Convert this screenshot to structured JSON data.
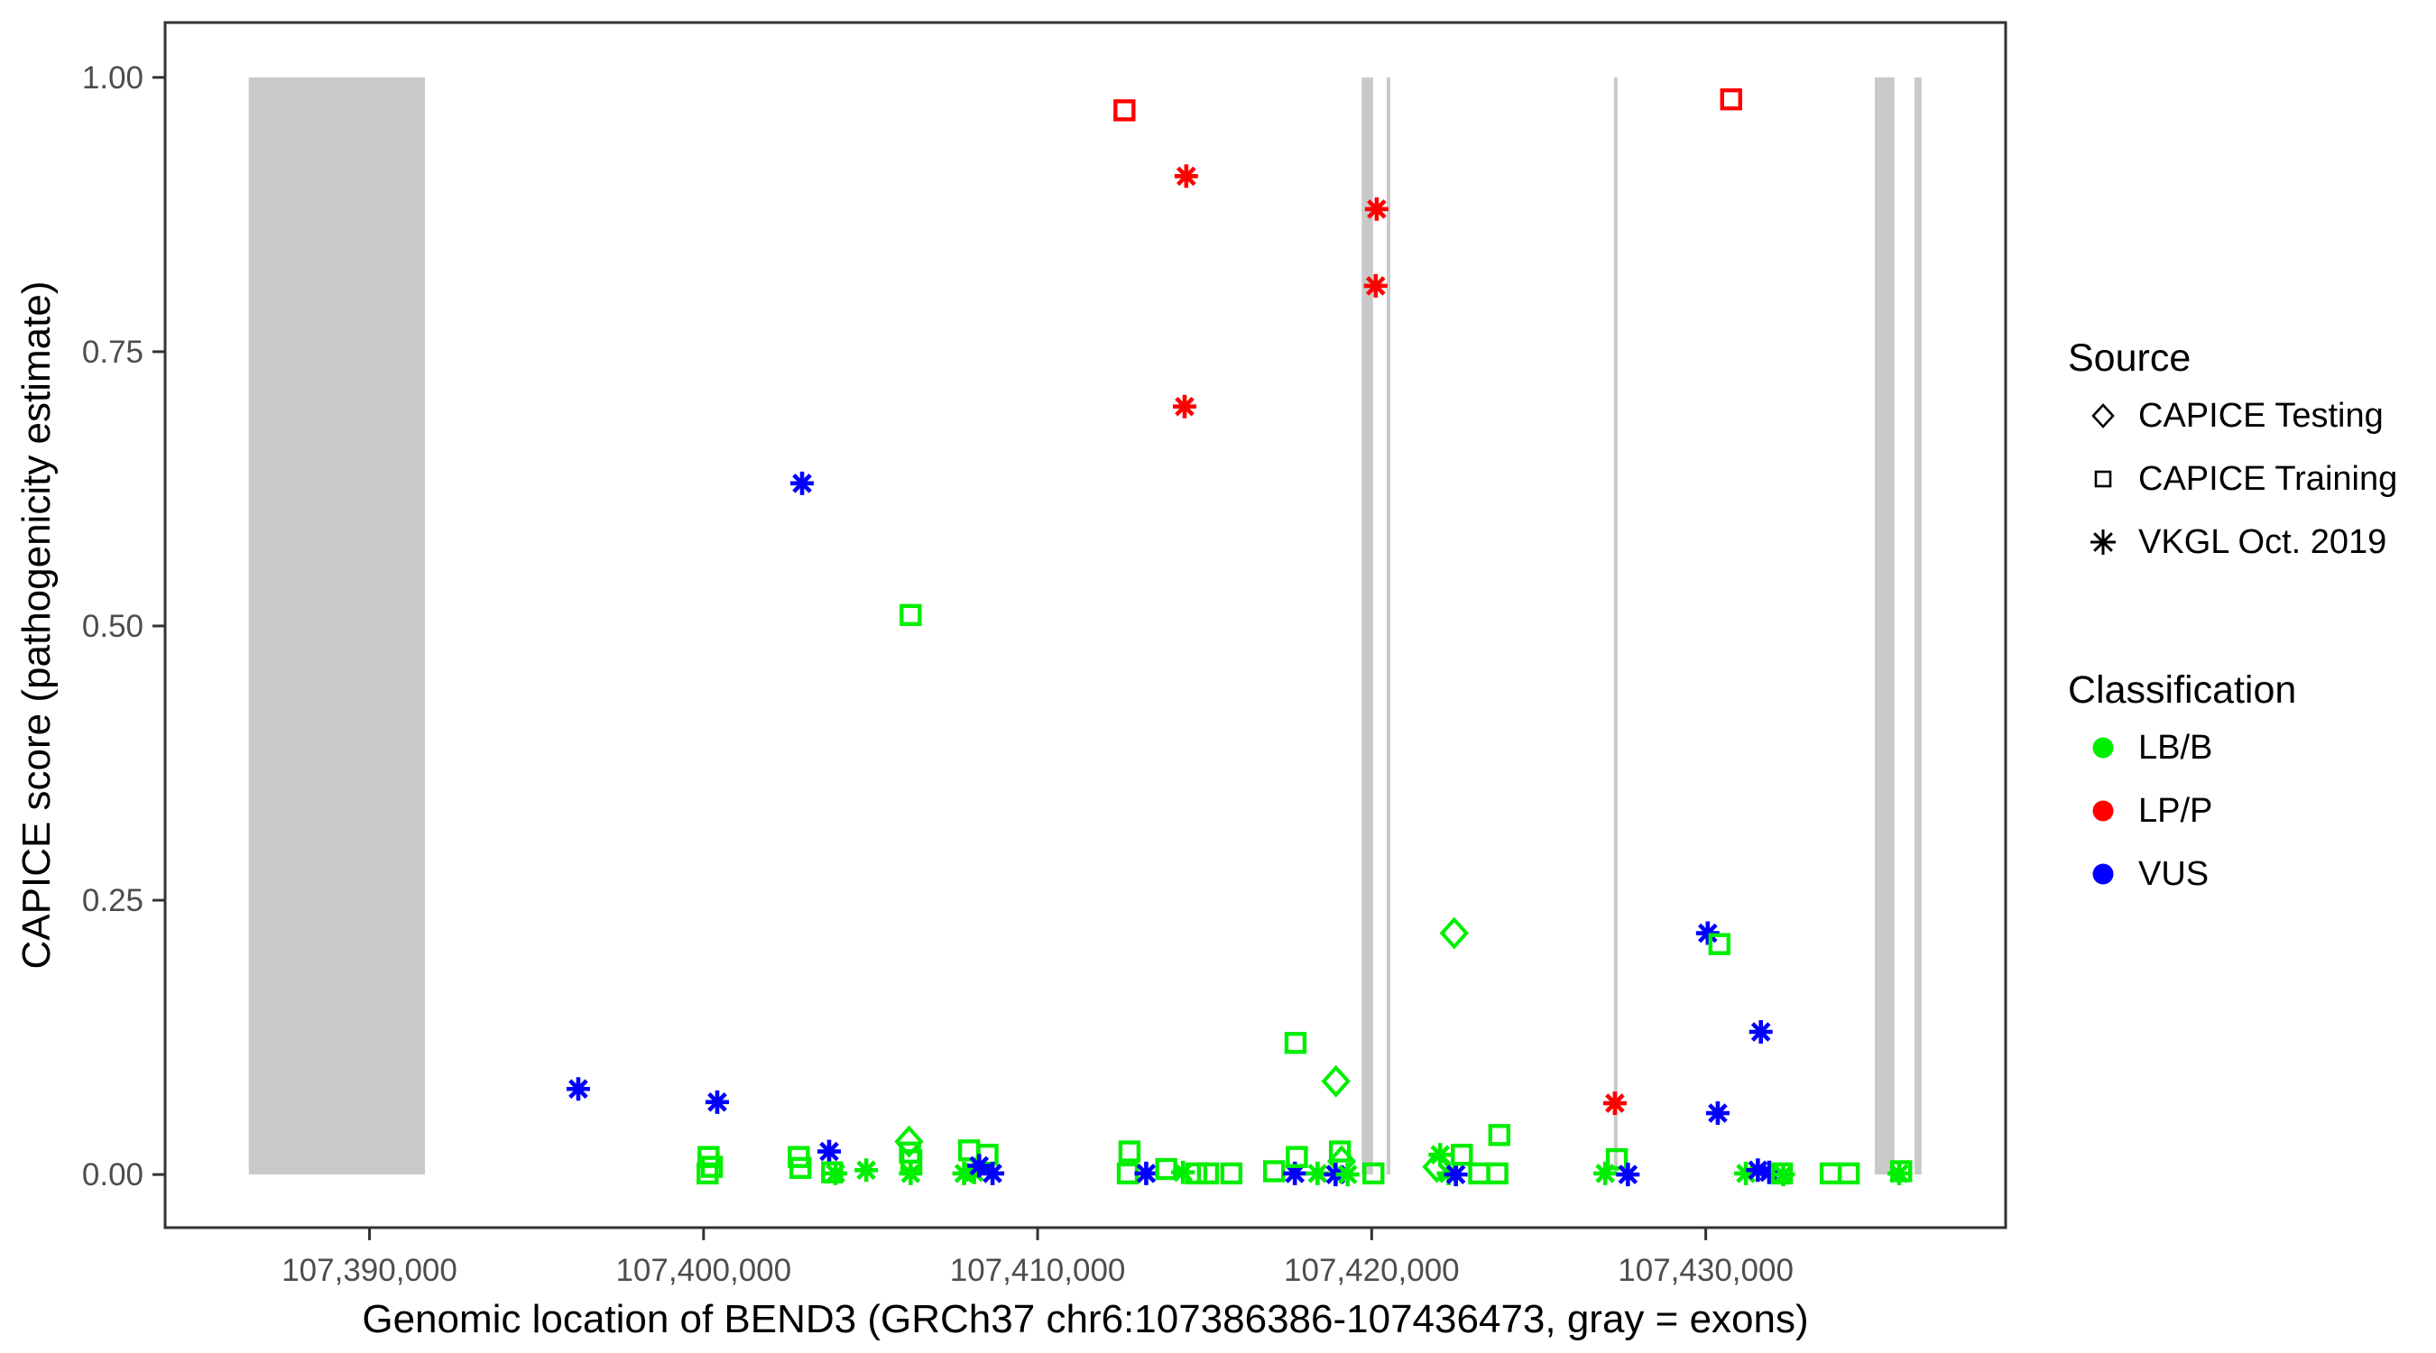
{
  "figure": {
    "xlabel": "Genomic location of BEND3 (GRCh37 chr6:107386386-107436473, gray = exons)",
    "ylabel": "CAPICE score (pathogenicity estimate)"
  },
  "legend": {
    "source": {
      "title": "Source",
      "items": [
        {
          "label": "CAPICE Testing",
          "marker": "diamond"
        },
        {
          "label": "CAPICE Training",
          "marker": "square"
        },
        {
          "label": "VKGL Oct. 2019",
          "marker": "asterisk"
        }
      ]
    },
    "classification": {
      "title": "Classification",
      "items": [
        {
          "label": "LB/B",
          "color": "#00EE00"
        },
        {
          "label": "LP/P",
          "color": "#FF0000"
        },
        {
          "label": "VUS",
          "color": "#0000FF"
        }
      ]
    }
  },
  "chart_data": {
    "type": "scatter",
    "title": "",
    "xlabel": "Genomic location of BEND3 (GRCh37 chr6:107386386-107436473, gray = exons)",
    "ylabel": "CAPICE score (pathogenicity estimate)",
    "x_range": [
      107383882,
      107438977
    ],
    "y_range": [
      -0.0484,
      1.05
    ],
    "grid": "off",
    "legend_position": "right",
    "x_ticks": [
      {
        "v": 107390000,
        "label": "107,390,000"
      },
      {
        "v": 107400000,
        "label": "107,400,000"
      },
      {
        "v": 107410000,
        "label": "107,410,000"
      },
      {
        "v": 107420000,
        "label": "107,420,000"
      },
      {
        "v": 107430000,
        "label": "107,430,000"
      }
    ],
    "y_ticks": [
      {
        "v": 0.0,
        "label": "0.00"
      },
      {
        "v": 0.25,
        "label": "0.25"
      },
      {
        "v": 0.5,
        "label": "0.50"
      },
      {
        "v": 0.75,
        "label": "0.75"
      },
      {
        "v": 1.0,
        "label": "1.00"
      }
    ],
    "marker_sources": {
      "diamond": "CAPICE Testing",
      "square": "CAPICE Training",
      "asterisk": "VKGL Oct. 2019"
    },
    "colors": {
      "LB/B": "#00EE00",
      "LP/P": "#FF0000",
      "VUS": "#0000FF",
      "exon": "#C9C9C9",
      "axis_text": "#4D4D4D",
      "panel_border": "#333333"
    },
    "exons_note": "gray vertical bands = exons, each spanning CAPICE score 0 to 1",
    "exons": [
      [
        107386386,
        107391660
      ],
      [
        107419700,
        107420040
      ],
      [
        107420450,
        107420530
      ],
      [
        107427250,
        107427360
      ],
      [
        107435060,
        107435650
      ],
      [
        107436250,
        107436460
      ]
    ],
    "points": [
      {
        "x": 107412600,
        "y": 0.97,
        "m": "square",
        "c": "LP/P"
      },
      {
        "x": 107430760,
        "y": 0.98,
        "m": "square",
        "c": "LP/P"
      },
      {
        "x": 107414450,
        "y": 0.91,
        "m": "asterisk",
        "c": "LP/P"
      },
      {
        "x": 107420150,
        "y": 0.88,
        "m": "asterisk",
        "c": "LP/P"
      },
      {
        "x": 107420120,
        "y": 0.81,
        "m": "asterisk",
        "c": "LP/P"
      },
      {
        "x": 107414400,
        "y": 0.7,
        "m": "asterisk",
        "c": "LP/P"
      },
      {
        "x": 107402950,
        "y": 0.63,
        "m": "asterisk",
        "c": "VUS"
      },
      {
        "x": 107406200,
        "y": 0.51,
        "m": "square",
        "c": "LB/B"
      },
      {
        "x": 107422470,
        "y": 0.22,
        "m": "diamond",
        "c": "LB/B"
      },
      {
        "x": 107430060,
        "y": 0.22,
        "m": "asterisk",
        "c": "VUS"
      },
      {
        "x": 107430410,
        "y": 0.21,
        "m": "square",
        "c": "LB/B"
      },
      {
        "x": 107431650,
        "y": 0.13,
        "m": "asterisk",
        "c": "VUS"
      },
      {
        "x": 107417720,
        "y": 0.12,
        "m": "square",
        "c": "LB/B"
      },
      {
        "x": 107418930,
        "y": 0.085,
        "m": "diamond",
        "c": "LB/B"
      },
      {
        "x": 107396250,
        "y": 0.078,
        "m": "asterisk",
        "c": "VUS"
      },
      {
        "x": 107400410,
        "y": 0.066,
        "m": "asterisk",
        "c": "VUS"
      },
      {
        "x": 107427280,
        "y": 0.065,
        "m": "asterisk",
        "c": "LP/P"
      },
      {
        "x": 107430360,
        "y": 0.056,
        "m": "asterisk",
        "c": "VUS"
      },
      {
        "x": 107423820,
        "y": 0.036,
        "m": "square",
        "c": "LB/B"
      },
      {
        "x": 107400150,
        "y": 0.016,
        "m": "square",
        "c": "LB/B"
      },
      {
        "x": 107400250,
        "y": 0.007,
        "m": "square",
        "c": "LB/B"
      },
      {
        "x": 107400120,
        "y": 0.001,
        "m": "square",
        "c": "LB/B"
      },
      {
        "x": 107402850,
        "y": 0.016,
        "m": "square",
        "c": "LB/B"
      },
      {
        "x": 107402900,
        "y": 0.006,
        "m": "square",
        "c": "LB/B"
      },
      {
        "x": 107403760,
        "y": 0.021,
        "m": "asterisk",
        "c": "VUS"
      },
      {
        "x": 107403850,
        "y": 0.002,
        "m": "square",
        "c": "LB/B"
      },
      {
        "x": 107403950,
        "y": 0.001,
        "m": "asterisk",
        "c": "LB/B"
      },
      {
        "x": 107404870,
        "y": 0.004,
        "m": "asterisk",
        "c": "LB/B"
      },
      {
        "x": 107406150,
        "y": 0.03,
        "m": "diamond",
        "c": "LB/B"
      },
      {
        "x": 107406180,
        "y": 0.02,
        "m": "square",
        "c": "LB/B"
      },
      {
        "x": 107406220,
        "y": 0.013,
        "m": "square",
        "c": "LB/B"
      },
      {
        "x": 107406200,
        "y": 0.001,
        "m": "asterisk",
        "c": "LB/B"
      },
      {
        "x": 107407950,
        "y": 0.022,
        "m": "square",
        "c": "LB/B"
      },
      {
        "x": 107408500,
        "y": 0.018,
        "m": "square",
        "c": "LB/B"
      },
      {
        "x": 107407800,
        "y": 0.001,
        "m": "asterisk",
        "c": "LB/B"
      },
      {
        "x": 107408100,
        "y": 0.002,
        "m": "asterisk",
        "c": "LB/B"
      },
      {
        "x": 107408250,
        "y": 0.008,
        "m": "asterisk",
        "c": "VUS"
      },
      {
        "x": 107408650,
        "y": 0.001,
        "m": "asterisk",
        "c": "VUS"
      },
      {
        "x": 107412750,
        "y": 0.021,
        "m": "square",
        "c": "LB/B"
      },
      {
        "x": 107412700,
        "y": 0.001,
        "m": "square",
        "c": "LB/B"
      },
      {
        "x": 107413250,
        "y": 0.001,
        "m": "asterisk",
        "c": "VUS"
      },
      {
        "x": 107413850,
        "y": 0.005,
        "m": "square",
        "c": "LB/B"
      },
      {
        "x": 107414350,
        "y": 0.002,
        "m": "asterisk",
        "c": "LB/B"
      },
      {
        "x": 107414750,
        "y": 0.001,
        "m": "square",
        "c": "LB/B"
      },
      {
        "x": 107415100,
        "y": 0.001,
        "m": "square",
        "c": "LB/B"
      },
      {
        "x": 107415800,
        "y": 0.001,
        "m": "square",
        "c": "LB/B"
      },
      {
        "x": 107417080,
        "y": 0.003,
        "m": "square",
        "c": "LB/B"
      },
      {
        "x": 107417700,
        "y": 0.001,
        "m": "asterisk",
        "c": "VUS"
      },
      {
        "x": 107417760,
        "y": 0.016,
        "m": "square",
        "c": "LB/B"
      },
      {
        "x": 107418380,
        "y": 0.001,
        "m": "asterisk",
        "c": "LB/B"
      },
      {
        "x": 107419050,
        "y": 0.021,
        "m": "square",
        "c": "LB/B"
      },
      {
        "x": 107419100,
        "y": 0.012,
        "m": "diamond",
        "c": "LB/B"
      },
      {
        "x": 107418920,
        "y": 0.0,
        "m": "asterisk",
        "c": "VUS"
      },
      {
        "x": 107419280,
        "y": 0.0,
        "m": "asterisk",
        "c": "LB/B"
      },
      {
        "x": 107420050,
        "y": 0.001,
        "m": "square",
        "c": "LB/B"
      },
      {
        "x": 107422050,
        "y": 0.018,
        "m": "asterisk",
        "c": "LB/B"
      },
      {
        "x": 107421950,
        "y": 0.007,
        "m": "diamond",
        "c": "LB/B"
      },
      {
        "x": 107422300,
        "y": 0.001,
        "m": "asterisk",
        "c": "LB/B"
      },
      {
        "x": 107422520,
        "y": 0.0,
        "m": "asterisk",
        "c": "VUS"
      },
      {
        "x": 107422700,
        "y": 0.018,
        "m": "square",
        "c": "LB/B"
      },
      {
        "x": 107423220,
        "y": 0.001,
        "m": "square",
        "c": "LB/B"
      },
      {
        "x": 107423760,
        "y": 0.001,
        "m": "square",
        "c": "LB/B"
      },
      {
        "x": 107426990,
        "y": 0.001,
        "m": "asterisk",
        "c": "LB/B"
      },
      {
        "x": 107427340,
        "y": 0.014,
        "m": "square",
        "c": "LB/B"
      },
      {
        "x": 107427670,
        "y": 0.0,
        "m": "asterisk",
        "c": "VUS"
      },
      {
        "x": 107431200,
        "y": 0.001,
        "m": "asterisk",
        "c": "LB/B"
      },
      {
        "x": 107431560,
        "y": 0.004,
        "m": "asterisk",
        "c": "VUS"
      },
      {
        "x": 107431900,
        "y": 0.002,
        "m": "asterisk",
        "c": "VUS"
      },
      {
        "x": 107432280,
        "y": 0.001,
        "m": "square",
        "c": "LB/B"
      },
      {
        "x": 107432320,
        "y": 0.0,
        "m": "asterisk",
        "c": "LB/B"
      },
      {
        "x": 107433740,
        "y": 0.001,
        "m": "square",
        "c": "LB/B"
      },
      {
        "x": 107434280,
        "y": 0.001,
        "m": "square",
        "c": "LB/B"
      },
      {
        "x": 107435790,
        "y": 0.001,
        "m": "asterisk",
        "c": "LB/B"
      },
      {
        "x": 107435850,
        "y": 0.003,
        "m": "square",
        "c": "LB/B"
      }
    ]
  }
}
